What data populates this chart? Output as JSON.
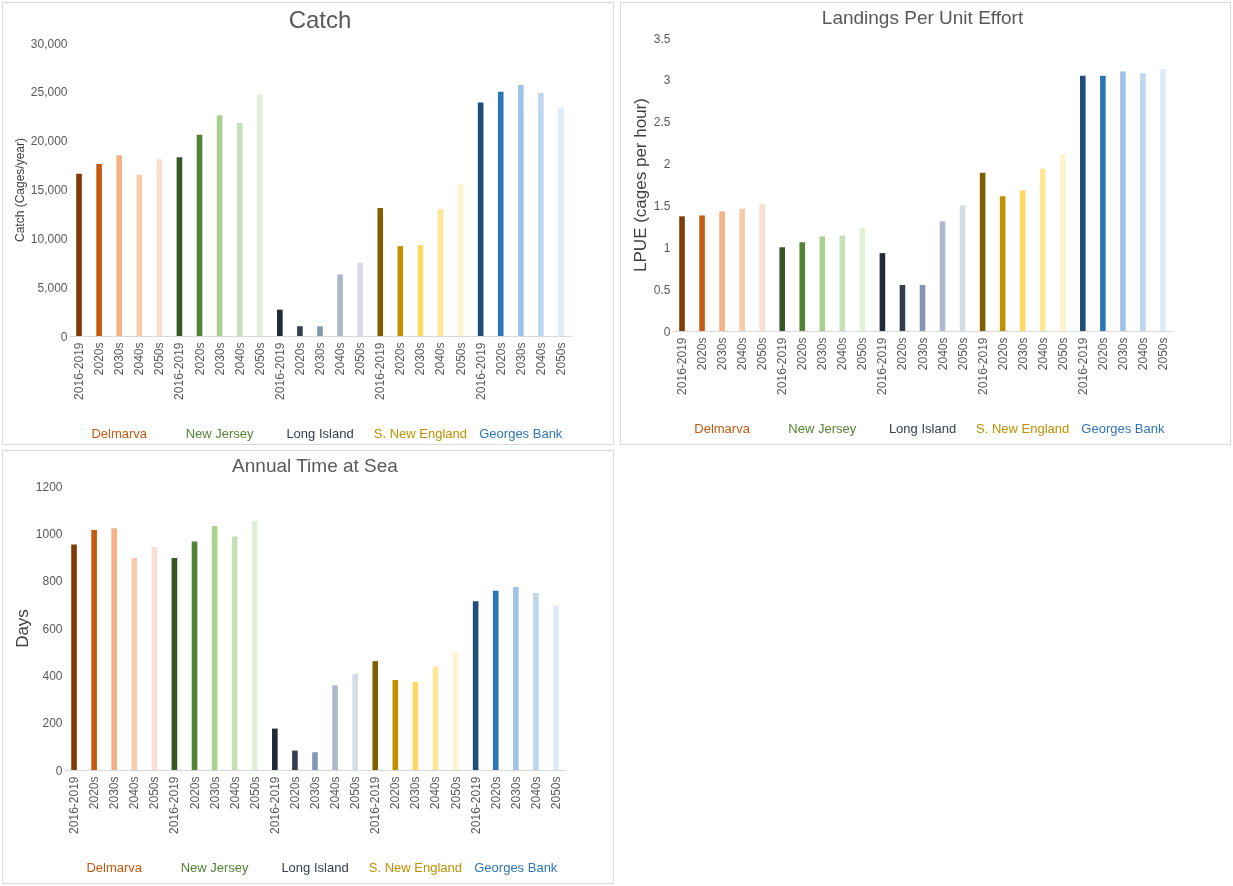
{
  "chart_data": [
    {
      "type": "bar",
      "title": "Catch",
      "ylabel": "Catch (Cages/year)",
      "categories": [
        "2016-2019",
        "2020s",
        "2030s",
        "2040s",
        "2050s",
        "2016-2019",
        "2020s",
        "2030s",
        "2040s",
        "2050s",
        "2016-2019",
        "2020s",
        "2030s",
        "2040s",
        "2050s",
        "2016-2019",
        "2020s",
        "2030s",
        "2040s",
        "2050s",
        "2016-2019",
        "2020s",
        "2030s",
        "2040s",
        "2050s"
      ],
      "values": [
        16600,
        17600,
        18500,
        16500,
        18100,
        18300,
        20600,
        22600,
        21800,
        24700,
        2700,
        1000,
        1000,
        6300,
        7500,
        13100,
        9200,
        9300,
        13000,
        15600,
        23900,
        25000,
        25700,
        24900,
        23400
      ],
      "colors": [
        "#7f3b08",
        "#c55a11",
        "#f4b183",
        "#f8cbad",
        "#fbe0d2",
        "#375623",
        "#548235",
        "#a9d18e",
        "#c5e0b4",
        "#e2f0d9",
        "#222a35",
        "#333f50",
        "#8497b0",
        "#adb9ca",
        "#d6dce5",
        "#7f6000",
        "#bf9000",
        "#ffd966",
        "#ffe699",
        "#fff2cc",
        "#1f4e79",
        "#2e75b6",
        "#9dc3e6",
        "#bdd7ee",
        "#deebf7"
      ],
      "ylim": [
        0,
        30000
      ],
      "yticks": [
        {
          "value": 0,
          "label": "0"
        },
        {
          "value": 5000,
          "label": "5,000"
        },
        {
          "value": 10000,
          "label": "10,000"
        },
        {
          "value": 15000,
          "label": "15,000"
        },
        {
          "value": 20000,
          "label": "20,000"
        },
        {
          "value": 25000,
          "label": "25,000"
        },
        {
          "value": 30000,
          "label": "30,000"
        }
      ],
      "annotations": [
        "Delmarva",
        "New Jersey",
        "Long Island",
        "S. New England",
        "Georges Bank"
      ]
    },
    {
      "type": "bar",
      "title": "Landings Per Unit Effort",
      "ylabel": "LPUE (cages per hour)",
      "categories": [
        "2016-2019",
        "2020s",
        "2030s",
        "2040s",
        "2050s",
        "2016-2019",
        "2020s",
        "2030s",
        "2040s",
        "2050s",
        "2016-2019",
        "2020s",
        "2030s",
        "2040s",
        "2050s",
        "2016-2019",
        "2020s",
        "2030s",
        "2040s",
        "2050s",
        "2016-2019",
        "2020s",
        "2030s",
        "2040s",
        "2050s"
      ],
      "values": [
        1.37,
        1.38,
        1.43,
        1.46,
        1.52,
        1.0,
        1.06,
        1.13,
        1.14,
        1.23,
        0.93,
        0.55,
        0.55,
        1.31,
        1.5,
        1.89,
        1.61,
        1.68,
        1.94,
        2.11,
        3.05,
        3.05,
        3.1,
        3.08,
        3.13
      ],
      "colors": [
        "#7f3b08",
        "#c55a11",
        "#f4b183",
        "#f8cbad",
        "#fbe0d2",
        "#375623",
        "#548235",
        "#a9d18e",
        "#c5e0b4",
        "#e2f0d9",
        "#222a35",
        "#333f50",
        "#8497b0",
        "#adb9ca",
        "#d6dce5",
        "#7f6000",
        "#bf9000",
        "#ffd966",
        "#ffe699",
        "#fff2cc",
        "#1f4e79",
        "#2e75b6",
        "#9dc3e6",
        "#bdd7ee",
        "#deebf7"
      ],
      "ylim": [
        0,
        3.5
      ],
      "yticks": [
        0,
        0.5,
        1,
        1.5,
        2,
        2.5,
        3,
        3.5
      ],
      "annotations": [
        "Delmarva",
        "New Jersey",
        "Long Island",
        "S. New England",
        "Georges Bank"
      ]
    },
    {
      "type": "bar",
      "title": "Annual Time at Sea",
      "ylabel": "Days",
      "categories": [
        "2016-2019",
        "2020s",
        "2030s",
        "2040s",
        "2050s",
        "2016-2019",
        "2020s",
        "2030s",
        "2040s",
        "2050s",
        "2016-2019",
        "2020s",
        "2030s",
        "2040s",
        "2050s",
        "2016-2019",
        "2020s",
        "2030s",
        "2040s",
        "2050s",
        "2016-2019",
        "2020s",
        "2030s",
        "2040s",
        "2050s"
      ],
      "values": [
        953,
        1014,
        1022,
        896,
        942,
        896,
        966,
        1031,
        987,
        1053,
        175,
        82,
        75,
        358,
        406,
        460,
        380,
        372,
        437,
        499,
        713,
        757,
        773,
        748,
        695
      ],
      "colors": [
        "#7f3b08",
        "#c55a11",
        "#f4b183",
        "#f8cbad",
        "#fbe0d2",
        "#375623",
        "#548235",
        "#a9d18e",
        "#c5e0b4",
        "#e2f0d9",
        "#222a35",
        "#333f50",
        "#8497b0",
        "#adb9ca",
        "#d6dce5",
        "#7f6000",
        "#bf9000",
        "#ffd966",
        "#ffe699",
        "#fff2cc",
        "#1f4e79",
        "#2e75b6",
        "#9dc3e6",
        "#bdd7ee",
        "#deebf7"
      ],
      "ylim": [
        0,
        1200
      ],
      "yticks": [
        0,
        200,
        400,
        600,
        800,
        1000,
        1200
      ],
      "annotations": [
        "Delmarva",
        "New Jersey",
        "Long Island",
        "S. New England",
        "Georges Bank"
      ]
    }
  ]
}
